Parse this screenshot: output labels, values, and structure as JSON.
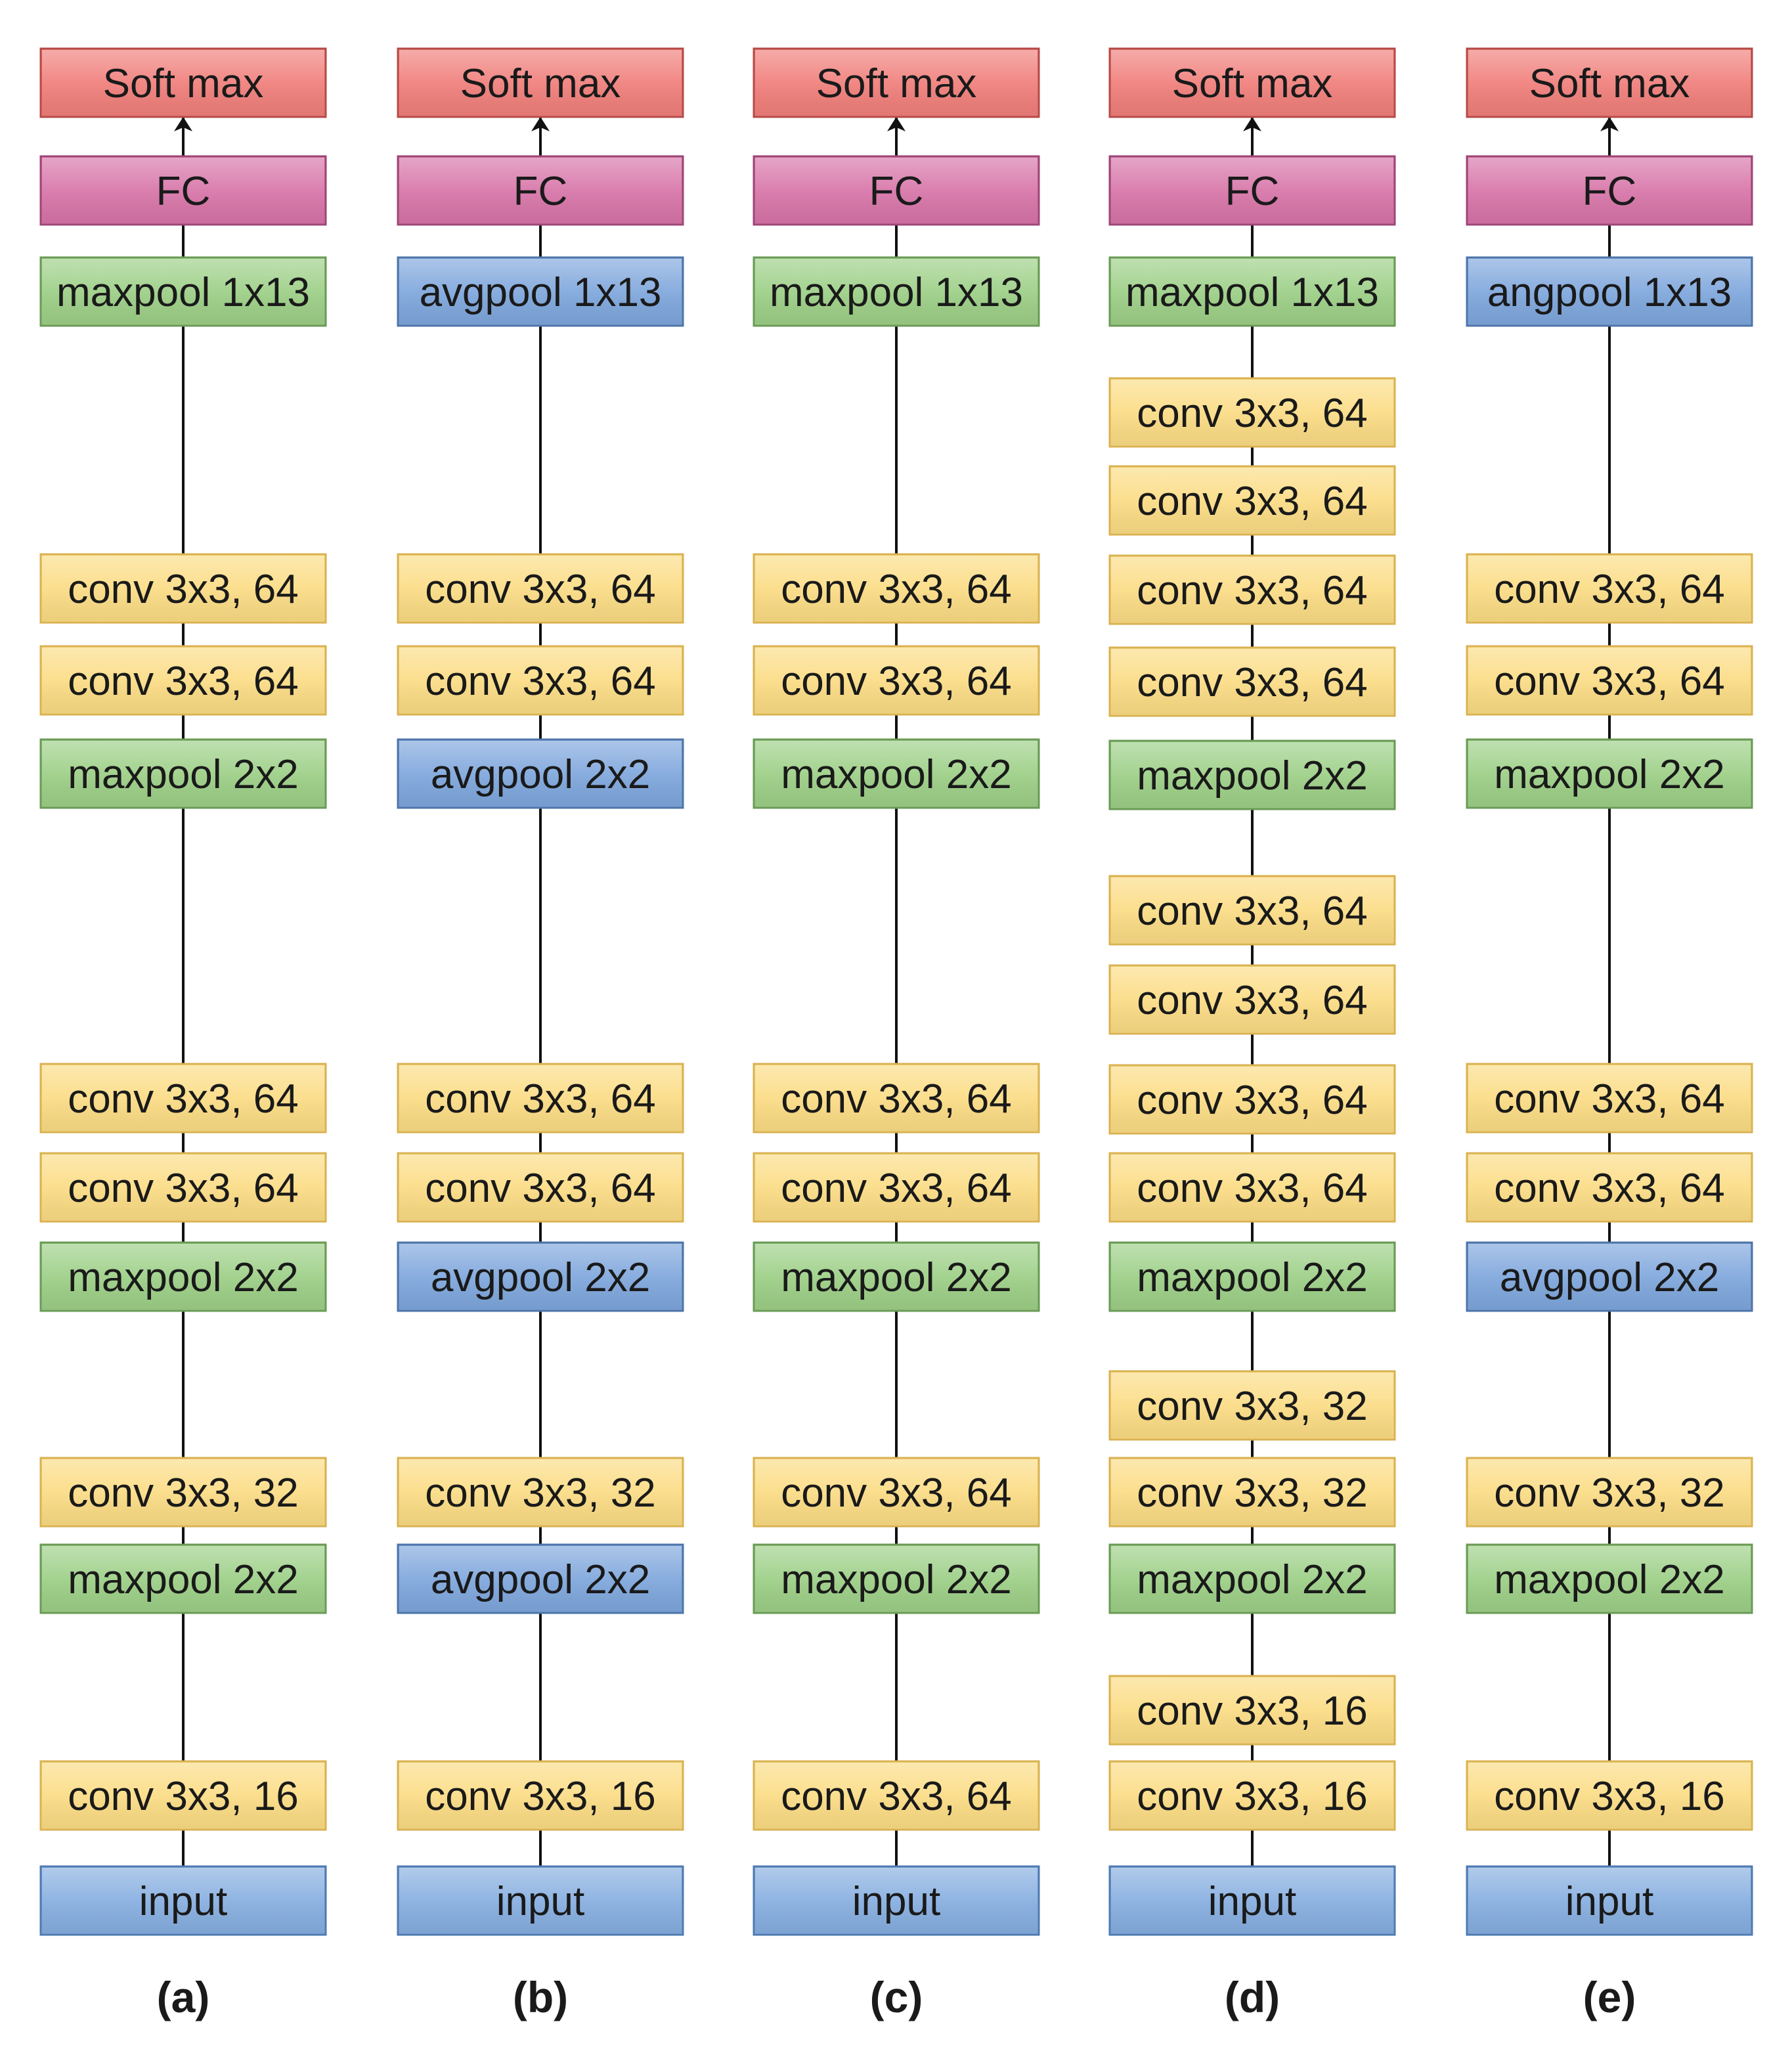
{
  "colors": {
    "softmax": {
      "fill": "#f07e7a",
      "stroke": "#b54a47"
    },
    "fc": {
      "fill": "#d774a8",
      "stroke": "#9c4676"
    },
    "maxpool": {
      "fill": "#9ccf86",
      "stroke": "#6a9a56"
    },
    "avgpool": {
      "fill": "#7ea6dc",
      "stroke": "#4d74a8"
    },
    "conv": {
      "fill": "#fbdc84",
      "stroke": "#d8b252"
    },
    "input": {
      "fill": "#86aee0",
      "stroke": "#4f7ab0"
    },
    "line": "#111111"
  },
  "columns": [
    {
      "caption": "(a)",
      "blocks": [
        {
          "label": "Soft max",
          "kind": "softmax"
        },
        {
          "label": "FC",
          "kind": "fc"
        },
        {
          "label": "maxpool 1x13",
          "kind": "maxpool"
        },
        {
          "label": "conv 3x3, 64",
          "kind": "conv"
        },
        {
          "label": "conv 3x3, 64",
          "kind": "conv"
        },
        {
          "label": "maxpool 2x2",
          "kind": "maxpool"
        },
        {
          "label": "conv 3x3, 64",
          "kind": "conv"
        },
        {
          "label": "conv 3x3, 64",
          "kind": "conv"
        },
        {
          "label": "maxpool 2x2",
          "kind": "maxpool"
        },
        {
          "label": "conv 3x3, 32",
          "kind": "conv"
        },
        {
          "label": "maxpool 2x2",
          "kind": "maxpool"
        },
        {
          "label": "conv 3x3, 16",
          "kind": "conv"
        },
        {
          "label": "input",
          "kind": "input"
        }
      ]
    },
    {
      "caption": "(b)",
      "blocks": [
        {
          "label": "Soft max",
          "kind": "softmax"
        },
        {
          "label": "FC",
          "kind": "fc"
        },
        {
          "label": "avgpool 1x13",
          "kind": "avgpool"
        },
        {
          "label": "conv 3x3, 64",
          "kind": "conv"
        },
        {
          "label": "conv 3x3, 64",
          "kind": "conv"
        },
        {
          "label": "avgpool 2x2",
          "kind": "avgpool"
        },
        {
          "label": "conv 3x3, 64",
          "kind": "conv"
        },
        {
          "label": "conv 3x3, 64",
          "kind": "conv"
        },
        {
          "label": "avgpool 2x2",
          "kind": "avgpool"
        },
        {
          "label": "conv 3x3, 32",
          "kind": "conv"
        },
        {
          "label": "avgpool 2x2",
          "kind": "avgpool"
        },
        {
          "label": "conv 3x3, 16",
          "kind": "conv"
        },
        {
          "label": "input",
          "kind": "input"
        }
      ]
    },
    {
      "caption": "(c)",
      "blocks": [
        {
          "label": "Soft max",
          "kind": "softmax"
        },
        {
          "label": "FC",
          "kind": "fc"
        },
        {
          "label": "maxpool 1x13",
          "kind": "maxpool"
        },
        {
          "label": "conv 3x3, 64",
          "kind": "conv"
        },
        {
          "label": "conv 3x3, 64",
          "kind": "conv"
        },
        {
          "label": "maxpool 2x2",
          "kind": "maxpool"
        },
        {
          "label": "conv 3x3, 64",
          "kind": "conv"
        },
        {
          "label": "conv 3x3, 64",
          "kind": "conv"
        },
        {
          "label": "maxpool 2x2",
          "kind": "maxpool"
        },
        {
          "label": "conv 3x3, 64",
          "kind": "conv"
        },
        {
          "label": "maxpool 2x2",
          "kind": "maxpool"
        },
        {
          "label": "conv 3x3, 64",
          "kind": "conv"
        },
        {
          "label": "input",
          "kind": "input"
        }
      ]
    },
    {
      "caption": "(d)",
      "blocks": [
        {
          "label": "Soft max",
          "kind": "softmax"
        },
        {
          "label": "FC",
          "kind": "fc"
        },
        {
          "label": "maxpool 1x13",
          "kind": "maxpool"
        },
        {
          "label": "conv 3x3, 64",
          "kind": "conv"
        },
        {
          "label": "conv 3x3, 64",
          "kind": "conv"
        },
        {
          "label": "conv 3x3, 64",
          "kind": "conv"
        },
        {
          "label": "conv 3x3, 64",
          "kind": "conv"
        },
        {
          "label": "maxpool 2x2",
          "kind": "maxpool"
        },
        {
          "label": "conv 3x3, 64",
          "kind": "conv"
        },
        {
          "label": "conv 3x3, 64",
          "kind": "conv"
        },
        {
          "label": "conv 3x3, 64",
          "kind": "conv"
        },
        {
          "label": "conv 3x3, 64",
          "kind": "conv"
        },
        {
          "label": "maxpool 2x2",
          "kind": "maxpool"
        },
        {
          "label": "conv 3x3, 32",
          "kind": "conv"
        },
        {
          "label": "conv 3x3, 32",
          "kind": "conv"
        },
        {
          "label": "maxpool 2x2",
          "kind": "maxpool"
        },
        {
          "label": "conv 3x3, 16",
          "kind": "conv"
        },
        {
          "label": "conv 3x3, 16",
          "kind": "conv"
        },
        {
          "label": "input",
          "kind": "input"
        }
      ]
    },
    {
      "caption": "(e)",
      "blocks": [
        {
          "label": "Soft max",
          "kind": "softmax"
        },
        {
          "label": "FC",
          "kind": "fc"
        },
        {
          "label": "angpool 1x13",
          "kind": "avgpool"
        },
        {
          "label": "conv 3x3, 64",
          "kind": "conv"
        },
        {
          "label": "conv 3x3, 64",
          "kind": "conv"
        },
        {
          "label": "maxpool 2x2",
          "kind": "maxpool"
        },
        {
          "label": "conv 3x3, 64",
          "kind": "conv"
        },
        {
          "label": "conv 3x3, 64",
          "kind": "conv"
        },
        {
          "label": "avgpool 2x2",
          "kind": "avgpool"
        },
        {
          "label": "conv 3x3, 32",
          "kind": "conv"
        },
        {
          "label": "maxpool 2x2",
          "kind": "maxpool"
        },
        {
          "label": "conv 3x3, 16",
          "kind": "conv"
        },
        {
          "label": "input",
          "kind": "input"
        }
      ]
    }
  ]
}
